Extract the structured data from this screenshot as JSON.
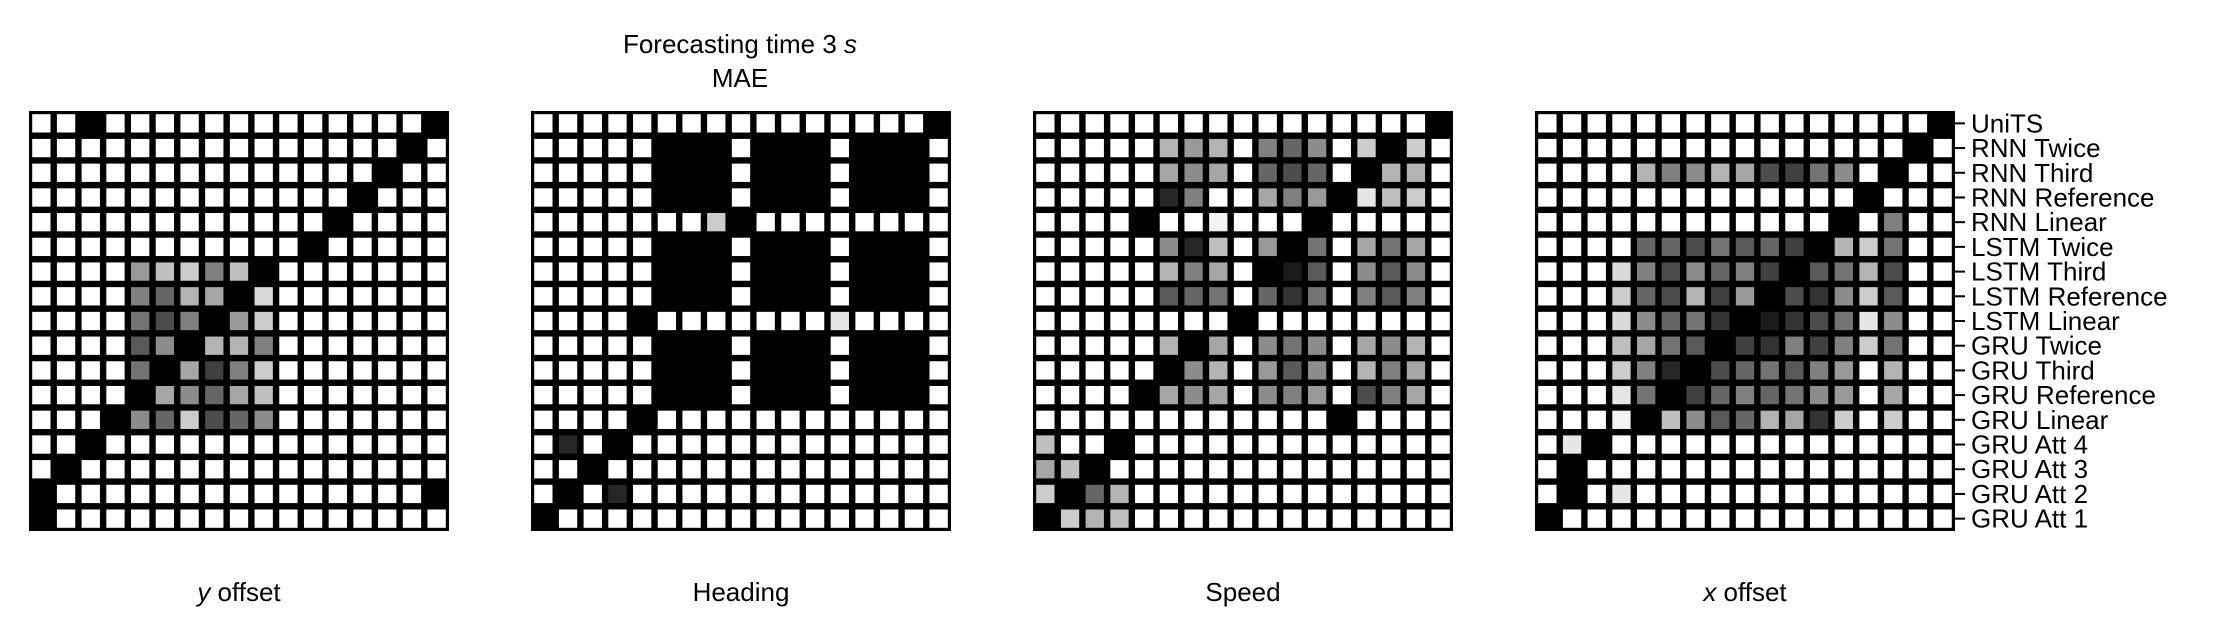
{
  "figure": {
    "title_prefix": "Forecasting time 3 ",
    "title_var": "s",
    "subtitle": "MAE"
  },
  "colors": {
    "background": "#000000",
    "cell_min": "#ffffff",
    "cell_max": "#000000"
  },
  "chart_data": [
    {
      "type": "heatmap",
      "id": "y-offset",
      "xlabel_var": "y",
      "xlabel": " offset",
      "labels": [
        "UniTS",
        "RNN Twice",
        "RNN Third",
        "RNN Reference",
        "RNN Linear",
        "LSTM Twice",
        "LSTM Third",
        "LSTM Reference",
        "LSTM Linear",
        "GRU Twice",
        "GRU Third",
        "GRU Reference",
        "GRU Linear",
        "GRU Att 4",
        "GRU Att 3",
        "GRU Att 2",
        "GRU Att 1"
      ],
      "value_range": [
        0,
        1
      ],
      "values": [
        [
          0,
          0,
          1,
          0,
          0,
          0,
          0,
          0,
          0,
          0,
          0,
          0,
          0,
          0,
          0,
          0,
          1
        ],
        [
          0,
          0,
          0,
          0,
          0,
          0,
          0,
          0,
          0,
          0,
          0,
          0,
          0,
          0,
          0,
          1,
          0
        ],
        [
          0,
          0,
          0,
          0,
          0,
          0,
          0,
          0,
          0,
          0,
          0,
          0,
          0,
          0,
          1,
          0,
          0
        ],
        [
          0,
          0,
          0,
          0,
          0,
          0,
          0,
          0,
          0,
          0,
          0,
          0,
          0,
          1,
          0,
          0,
          0
        ],
        [
          0,
          0,
          0,
          0,
          0,
          0,
          0,
          0,
          0,
          0,
          0,
          0,
          1,
          0,
          0,
          0,
          0
        ],
        [
          0,
          0,
          0,
          0,
          0,
          0,
          0,
          0,
          0,
          0,
          0,
          1,
          0,
          0,
          0,
          0,
          0
        ],
        [
          0,
          0,
          0,
          0,
          0.4,
          0.25,
          0.2,
          0.5,
          0.25,
          1,
          0,
          0,
          0,
          0,
          0,
          0,
          0
        ],
        [
          0,
          0,
          0,
          0,
          0.5,
          0.6,
          0.3,
          0.35,
          1,
          0.15,
          0,
          0,
          0,
          0,
          0,
          0,
          0
        ],
        [
          0,
          0,
          0,
          0,
          0.55,
          0.7,
          0.5,
          1,
          0.4,
          0.2,
          0,
          0,
          0,
          0,
          0,
          0,
          0
        ],
        [
          0,
          0,
          0,
          0,
          0.65,
          0.45,
          1,
          0.3,
          0.3,
          0.5,
          0,
          0,
          0,
          0,
          0,
          0,
          0
        ],
        [
          0,
          0,
          0,
          0,
          0.55,
          1,
          0.35,
          0.75,
          0.5,
          0.2,
          0,
          0,
          0,
          0,
          0,
          0,
          0
        ],
        [
          0,
          0,
          0,
          0,
          1,
          0.35,
          0.45,
          0.6,
          0.35,
          0.25,
          0,
          0,
          0,
          0,
          0,
          0,
          0
        ],
        [
          0,
          0,
          0,
          1,
          0.45,
          0.6,
          0.2,
          0.7,
          0.6,
          0.45,
          0,
          0,
          0,
          0,
          0,
          0,
          0
        ],
        [
          0,
          0,
          1,
          0,
          0,
          0,
          0,
          0,
          0,
          0,
          0,
          0,
          0,
          0,
          0,
          0,
          0
        ],
        [
          0,
          1,
          0,
          0,
          0,
          0,
          0,
          0,
          0,
          0,
          0,
          0,
          0,
          0,
          0,
          0,
          0
        ],
        [
          1,
          0,
          0,
          0,
          0,
          0,
          0,
          0,
          0,
          0,
          0,
          0,
          0,
          0,
          0,
          0,
          1
        ],
        [
          1,
          0,
          0,
          0,
          0,
          0,
          0,
          0,
          0,
          0,
          0,
          0,
          0,
          0,
          0,
          0,
          0
        ]
      ]
    },
    {
      "type": "heatmap",
      "id": "heading",
      "xlabel_var": "",
      "xlabel": "Heading",
      "labels": [
        "UniTS",
        "RNN Twice",
        "RNN Third",
        "RNN Reference",
        "RNN Linear",
        "LSTM Twice",
        "LSTM Third",
        "LSTM Reference",
        "LSTM Linear",
        "GRU Twice",
        "GRU Third",
        "GRU Reference",
        "GRU Linear",
        "GRU Att 4",
        "GRU Att 3",
        "GRU Att 2",
        "GRU Att 1"
      ],
      "value_range": [
        0,
        1
      ],
      "values": [
        [
          0,
          0,
          0,
          0,
          0,
          0,
          0,
          0,
          0,
          0,
          0,
          0,
          0,
          0,
          0,
          0,
          1
        ],
        [
          0,
          0,
          0,
          0,
          0,
          1,
          1,
          1,
          0,
          1,
          1,
          1,
          0,
          1,
          1,
          1,
          0
        ],
        [
          0,
          0,
          0,
          0,
          0,
          1,
          1,
          1,
          0,
          1,
          1,
          1,
          0,
          1,
          1,
          1,
          0
        ],
        [
          0,
          0,
          0,
          0,
          0,
          1,
          1,
          1,
          0,
          1,
          1,
          1,
          0,
          1,
          1,
          1,
          0
        ],
        [
          0,
          0,
          0,
          0,
          0,
          0,
          0,
          0.2,
          1,
          0,
          0,
          0,
          0,
          0,
          0,
          0,
          0
        ],
        [
          0,
          0,
          0,
          0,
          0,
          1,
          1,
          1,
          0,
          1,
          1,
          1,
          0,
          1,
          1,
          1,
          0
        ],
        [
          0,
          0,
          0,
          0,
          0,
          1,
          1,
          1,
          0,
          1,
          1,
          1,
          0,
          1,
          1,
          1,
          0
        ],
        [
          0,
          0,
          0,
          0,
          0,
          1,
          1,
          1,
          0,
          1,
          1,
          1,
          0,
          1,
          1,
          1,
          0
        ],
        [
          0,
          0,
          0,
          0,
          1,
          0,
          0,
          0,
          0,
          0,
          0,
          0,
          0.1,
          0,
          0,
          0,
          0
        ],
        [
          0,
          0,
          0,
          0,
          0,
          1,
          1,
          1,
          0,
          1,
          1,
          1,
          0,
          1,
          1,
          1,
          0
        ],
        [
          0,
          0,
          0,
          0,
          0,
          1,
          1,
          1,
          0,
          1,
          1,
          1,
          0,
          1,
          1,
          1,
          0
        ],
        [
          0,
          0,
          0,
          0,
          0,
          1,
          1,
          1,
          0,
          1,
          1,
          1,
          0,
          1,
          1,
          1,
          0
        ],
        [
          0,
          0,
          0,
          0,
          1,
          0,
          0,
          0,
          0,
          0,
          0,
          0,
          0,
          0,
          0,
          0,
          0
        ],
        [
          0,
          0.85,
          0,
          1,
          0,
          0,
          0,
          0,
          0,
          0,
          0,
          0,
          0,
          0,
          0,
          0,
          0
        ],
        [
          0,
          0,
          1,
          0,
          0,
          0,
          0,
          0,
          0,
          0,
          0,
          0,
          0,
          0,
          0,
          0,
          0
        ],
        [
          0,
          1,
          0,
          0.85,
          0,
          0,
          0,
          0,
          0,
          0,
          0,
          0,
          0,
          0,
          0,
          0,
          0
        ],
        [
          1,
          0,
          0,
          0,
          0,
          0,
          0,
          0,
          0,
          0,
          0,
          0,
          0,
          0,
          0,
          0,
          0
        ]
      ]
    },
    {
      "type": "heatmap",
      "id": "speed",
      "xlabel_var": "",
      "xlabel": "Speed",
      "labels": [
        "UniTS",
        "RNN Twice",
        "RNN Third",
        "RNN Reference",
        "RNN Linear",
        "LSTM Twice",
        "LSTM Third",
        "LSTM Reference",
        "LSTM Linear",
        "GRU Twice",
        "GRU Third",
        "GRU Reference",
        "GRU Linear",
        "GRU Att 4",
        "GRU Att 3",
        "GRU Att 2",
        "GRU Att 1"
      ],
      "value_range": [
        0,
        1
      ],
      "values": [
        [
          0,
          0,
          0,
          0,
          0,
          0,
          0,
          0,
          0,
          0,
          0,
          0,
          0,
          0,
          0,
          0,
          1
        ],
        [
          0,
          0,
          0,
          0,
          0,
          0.3,
          0.4,
          0.3,
          0,
          0.5,
          0.6,
          0.45,
          0,
          0.2,
          1,
          0.2,
          0
        ],
        [
          0,
          0,
          0,
          0,
          0,
          0.35,
          0.45,
          0.35,
          0,
          0.6,
          0.7,
          0.6,
          0,
          1,
          0.3,
          0.3,
          0
        ],
        [
          0,
          0,
          0,
          0,
          0,
          0.85,
          0.5,
          0,
          0,
          0.35,
          0.5,
          0.4,
          1,
          0.1,
          0.25,
          0.2,
          0
        ],
        [
          0,
          0,
          0,
          0,
          1,
          0,
          0,
          0.05,
          0,
          0,
          0,
          1,
          0,
          0,
          0,
          0,
          0
        ],
        [
          0,
          0,
          0,
          0,
          0,
          0.45,
          0.85,
          0.25,
          0,
          0.4,
          1,
          0.55,
          0,
          0.35,
          0.55,
          0.35,
          0
        ],
        [
          0,
          0,
          0,
          0,
          0,
          0.3,
          0.5,
          0.35,
          0,
          1,
          0.9,
          0.65,
          0,
          0.45,
          0.65,
          0.45,
          0
        ],
        [
          0,
          0,
          0,
          0,
          0,
          0.65,
          0.6,
          0.55,
          0,
          0.6,
          0.8,
          0.55,
          0,
          0.5,
          0.65,
          0.5,
          0
        ],
        [
          0,
          0,
          0,
          0,
          0,
          0,
          0,
          0,
          1,
          0,
          0,
          0,
          0,
          0,
          0,
          0,
          0
        ],
        [
          0,
          0,
          0,
          0,
          0,
          0.3,
          1,
          0.35,
          0,
          0.45,
          0.55,
          0.45,
          0,
          0.35,
          0.45,
          0.3,
          0
        ],
        [
          0,
          0,
          0,
          0,
          0,
          1,
          0.45,
          0.3,
          0,
          0.4,
          0.65,
          0.45,
          0,
          0.3,
          0.5,
          0.35,
          0
        ],
        [
          0,
          0,
          0,
          0,
          1,
          0.35,
          0.45,
          0.35,
          0,
          0.45,
          0.5,
          0.4,
          0,
          0.7,
          0.5,
          0.35,
          0
        ],
        [
          0,
          0,
          0,
          0,
          0,
          0,
          0,
          0,
          0,
          0,
          0,
          0,
          1,
          0,
          0,
          0,
          0
        ],
        [
          0.25,
          0,
          0,
          1,
          0,
          0,
          0,
          0,
          0,
          0,
          0,
          0,
          0,
          0,
          0,
          0,
          0
        ],
        [
          0.35,
          0.25,
          1,
          0,
          0,
          0,
          0,
          0,
          0,
          0,
          0,
          0,
          0,
          0,
          0,
          0,
          0
        ],
        [
          0.2,
          1,
          0.6,
          0.3,
          0,
          0,
          0,
          0,
          0,
          0,
          0,
          0,
          0,
          0,
          0,
          0,
          0
        ],
        [
          1,
          0.2,
          0.3,
          0.25,
          0,
          0,
          0,
          0,
          0,
          0,
          0,
          0,
          0,
          0,
          0,
          0,
          0
        ]
      ]
    },
    {
      "type": "heatmap",
      "id": "x-offset",
      "xlabel_var": "x",
      "xlabel": " offset",
      "labels": [
        "UniTS",
        "RNN Twice",
        "RNN Third",
        "RNN Reference",
        "RNN Linear",
        "LSTM Twice",
        "LSTM Third",
        "LSTM Reference",
        "LSTM Linear",
        "GRU Twice",
        "GRU Third",
        "GRU Reference",
        "GRU Linear",
        "GRU Att 4",
        "GRU Att 3",
        "GRU Att 2",
        "GRU Att 1"
      ],
      "value_range": [
        0,
        1
      ],
      "values": [
        [
          0,
          0,
          0,
          0,
          0,
          0,
          0,
          0,
          0,
          0,
          0,
          0,
          0,
          0,
          0,
          0,
          1
        ],
        [
          0,
          0,
          0,
          0,
          0,
          0,
          0,
          0,
          0,
          0,
          0,
          0,
          0,
          0,
          0,
          1,
          0
        ],
        [
          0,
          0,
          0,
          0,
          0.3,
          0.5,
          0.45,
          0.3,
          0.35,
          0.7,
          0.75,
          0.55,
          0.45,
          0,
          1,
          0,
          0
        ],
        [
          0,
          0,
          0,
          0,
          0,
          0,
          0,
          0,
          0,
          0,
          0,
          0,
          0,
          1,
          0,
          0,
          0
        ],
        [
          0,
          0,
          0,
          0,
          0,
          0,
          0,
          0,
          0,
          0,
          0,
          0,
          1,
          0,
          0.5,
          0,
          0
        ],
        [
          0,
          0,
          0,
          0,
          0.6,
          0.6,
          0.7,
          0.55,
          0.65,
          0.6,
          0.75,
          1,
          0.3,
          0.2,
          0.55,
          0,
          0
        ],
        [
          0,
          0,
          0,
          0.15,
          0.5,
          0.7,
          0.45,
          0.6,
          0.5,
          0.75,
          1,
          0.65,
          0.55,
          0.3,
          0.7,
          0,
          0
        ],
        [
          0,
          0,
          0,
          0.2,
          0.6,
          0.7,
          0.3,
          0.75,
          0.4,
          1,
          0.7,
          0.8,
          0.45,
          0.2,
          0.65,
          0,
          0
        ],
        [
          0,
          0,
          0,
          0.15,
          0.45,
          0.6,
          0.55,
          0.8,
          1,
          0.9,
          0.8,
          0.7,
          0.55,
          0.1,
          0.45,
          0,
          0
        ],
        [
          0,
          0,
          0,
          0.25,
          0.35,
          0.55,
          0.65,
          1,
          0.75,
          0.8,
          0.5,
          0.75,
          0.5,
          0.2,
          0.55,
          0,
          0
        ],
        [
          0,
          0,
          0,
          0.2,
          0.5,
          0.85,
          1,
          0.7,
          0.6,
          0.55,
          0.65,
          0.5,
          0.4,
          0,
          0.3,
          0,
          0
        ],
        [
          0,
          0,
          0,
          0.1,
          0.55,
          1,
          0.75,
          0.6,
          0.5,
          0.6,
          0.55,
          0.45,
          0.4,
          0,
          0.35,
          0,
          0
        ],
        [
          0,
          0,
          0,
          0.05,
          1,
          0.25,
          0.45,
          0.65,
          0.6,
          0.3,
          0.35,
          0.8,
          0.2,
          0,
          0.2,
          0,
          0
        ],
        [
          0,
          0.1,
          1,
          0,
          0,
          0,
          0,
          0,
          0,
          0,
          0,
          0,
          0,
          0,
          0,
          0,
          0
        ],
        [
          0,
          1,
          0,
          0,
          0,
          0,
          0,
          0,
          0,
          0,
          0,
          0,
          0,
          0,
          0,
          0,
          0
        ],
        [
          0,
          1,
          0,
          0.1,
          0,
          0,
          0,
          0,
          0,
          0,
          0,
          0,
          0,
          0,
          0,
          0,
          0
        ],
        [
          1,
          0,
          0,
          0,
          0,
          0,
          0,
          0,
          0,
          0,
          0,
          0,
          0,
          0,
          0,
          0,
          0
        ]
      ]
    }
  ]
}
